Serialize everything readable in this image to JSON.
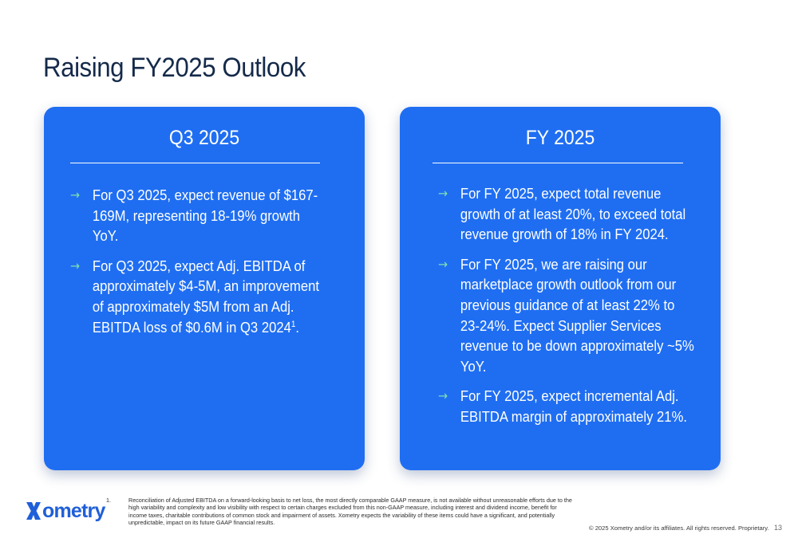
{
  "slide": {
    "title": "Raising FY2025 Outlook"
  },
  "cards": [
    {
      "heading": "Q3 2025",
      "bullets": [
        {
          "text": "For Q3 2025, expect revenue of $167-169M, representing 18-19% growth YoY."
        },
        {
          "text": "For Q3 2025, expect Adj. EBITDA of approximately $4-5M, an improvement of approximately $5M from an Adj. EBITDA loss of $0.6M in Q3 2024",
          "sup": "1",
          "tail": "."
        }
      ]
    },
    {
      "heading": "FY 2025",
      "bullets": [
        {
          "text": "For FY 2025, expect total revenue growth of at least 20%, to exceed total revenue growth of 18% in FY 2024."
        },
        {
          "text": "For FY 2025, we are raising our marketplace growth outlook from our previous guidance of at least 22% to 23-24%. Expect Supplier Services revenue to be down approximately ~5% YoY."
        },
        {
          "text": "For FY 2025, expect incremental Adj. EBITDA margin of approximately 21%."
        }
      ]
    }
  ],
  "bullet_icon": "→",
  "footer": {
    "logo_text": "ometry",
    "logo_icon": "xometry-x-logo-icon",
    "footnote_number": "1.",
    "footnote_text": "Reconciliation of Adjusted EBITDA on a forward-looking basis to net loss, the most directly comparable GAAP measure, is not available without unreasonable efforts due to the high variability and complexity and low visibility with respect to certain charges excluded from this non-GAAP measure, including interest and dividend income, benefit for income taxes, charitable contributions of common stock and impairment of assets. Xometry expects the variability of these items could have a significant, and potentially unpredictable, impact on its future GAAP financial results.",
    "copyright": "© 2025 Xometry and/or its affiliates. All rights reserved. Proprietary.",
    "page_number": "13"
  },
  "colors": {
    "card_blue": "#1f6ef2",
    "title_navy": "#152a4a",
    "arrow_green": "#7fe0b0",
    "logo_blue": "#1f5fd8"
  }
}
